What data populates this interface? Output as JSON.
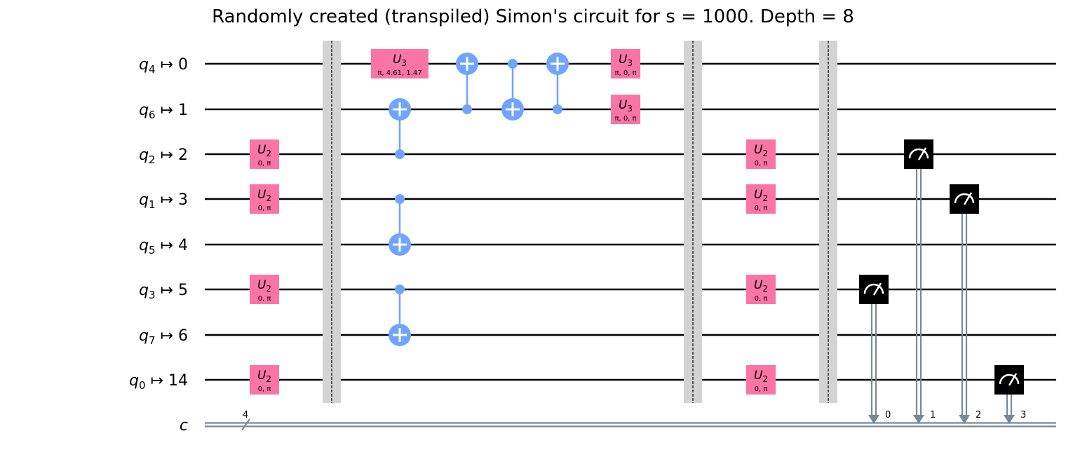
{
  "title": "Randomly created (transpiled) Simon's circuit for s = 1000. Depth = 8",
  "colors": {
    "u_gate": "#fa74a6",
    "cx": "#6fa4ff",
    "barrier": "#d3d3d3",
    "measure": "#000000",
    "classical": "#778899",
    "wire": "#000000"
  },
  "qubits": [
    {
      "sym": "q",
      "sub": "4",
      "idx": "0"
    },
    {
      "sym": "q",
      "sub": "6",
      "idx": "1"
    },
    {
      "sym": "q",
      "sub": "2",
      "idx": "2"
    },
    {
      "sym": "q",
      "sub": "1",
      "idx": "3"
    },
    {
      "sym": "q",
      "sub": "5",
      "idx": "4"
    },
    {
      "sym": "q",
      "sub": "3",
      "idx": "5"
    },
    {
      "sym": "q",
      "sub": "7",
      "idx": "6"
    },
    {
      "sym": "q",
      "sub": "0",
      "idx": "14"
    }
  ],
  "classical": {
    "label": "c",
    "size": "4"
  },
  "gates": [
    {
      "type": "u",
      "name": "U",
      "sub": "2",
      "params": "0, π",
      "row": 2,
      "col": 0
    },
    {
      "type": "u",
      "name": "U",
      "sub": "2",
      "params": "0, π",
      "row": 3,
      "col": 0
    },
    {
      "type": "u",
      "name": "U",
      "sub": "2",
      "params": "0, π",
      "row": 5,
      "col": 0
    },
    {
      "type": "u",
      "name": "U",
      "sub": "2",
      "params": "0, π",
      "row": 7,
      "col": 0
    },
    {
      "type": "barrier",
      "col": 1
    },
    {
      "type": "u",
      "name": "U",
      "sub": "3",
      "params": "π, 4.61, 1.47",
      "row": 0,
      "col": 2,
      "wide": true
    },
    {
      "type": "cx",
      "control": 2,
      "target": 1,
      "col": 2
    },
    {
      "type": "cx",
      "control": 3,
      "target": 4,
      "col": 2
    },
    {
      "type": "cx",
      "control": 5,
      "target": 6,
      "col": 2
    },
    {
      "type": "cx",
      "control": 1,
      "target": 0,
      "col": 3
    },
    {
      "type": "cx",
      "control": 0,
      "target": 1,
      "col": 4
    },
    {
      "type": "cx",
      "control": 1,
      "target": 0,
      "col": 5
    },
    {
      "type": "u",
      "name": "U",
      "sub": "3",
      "params": "π, 0, π",
      "row": 0,
      "col": 6
    },
    {
      "type": "u",
      "name": "U",
      "sub": "3",
      "params": "π, 0, π",
      "row": 1,
      "col": 6
    },
    {
      "type": "barrier",
      "col": 7
    },
    {
      "type": "u",
      "name": "U",
      "sub": "2",
      "params": "0, π",
      "row": 2,
      "col": 8
    },
    {
      "type": "u",
      "name": "U",
      "sub": "2",
      "params": "0, π",
      "row": 3,
      "col": 8
    },
    {
      "type": "u",
      "name": "U",
      "sub": "2",
      "params": "0, π",
      "row": 5,
      "col": 8
    },
    {
      "type": "u",
      "name": "U",
      "sub": "2",
      "params": "0, π",
      "row": 7,
      "col": 8
    },
    {
      "type": "barrier",
      "col": 9
    },
    {
      "type": "measure",
      "row": 5,
      "col": 10,
      "cbit": "0"
    },
    {
      "type": "measure",
      "row": 2,
      "col": 11,
      "cbit": "1"
    },
    {
      "type": "measure",
      "row": 3,
      "col": 12,
      "cbit": "2"
    },
    {
      "type": "measure",
      "row": 7,
      "col": 13,
      "cbit": "3"
    }
  ]
}
